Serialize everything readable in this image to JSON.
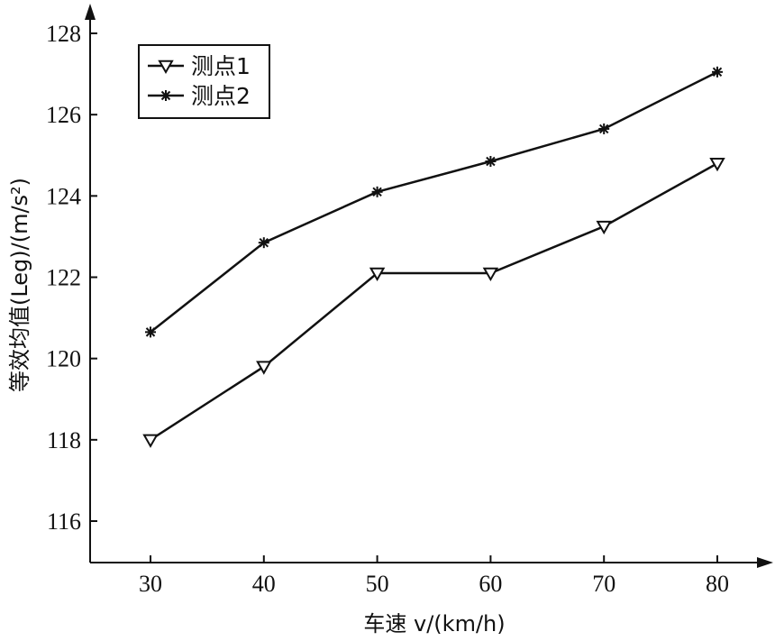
{
  "chart_data": {
    "type": "line",
    "xlabel": "车速 v/(km/h)",
    "ylabel": "等效均值(Leg)/(m/s²)",
    "x": [
      30,
      40,
      50,
      60,
      70,
      80
    ],
    "xlim": [
      25,
      85
    ],
    "ylim": [
      115,
      129
    ],
    "x_ticks": [
      "30",
      "40",
      "50",
      "60",
      "70",
      "80"
    ],
    "y_ticks": [
      "116",
      "118",
      "120",
      "122",
      "124",
      "126",
      "128"
    ],
    "grid": false,
    "legend_position": "top-left",
    "series": [
      {
        "name": "测点1",
        "marker": "triangle-down",
        "values": [
          118.0,
          119.8,
          122.1,
          122.1,
          123.25,
          124.8
        ]
      },
      {
        "name": "测点2",
        "marker": "asterisk",
        "values": [
          120.65,
          122.85,
          124.1,
          124.85,
          125.65,
          127.05
        ]
      }
    ]
  }
}
